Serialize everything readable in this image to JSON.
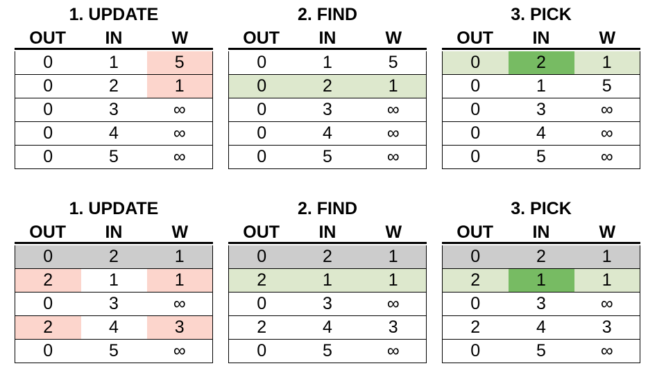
{
  "colors": {
    "red": "#fcd5cc",
    "lg": "#dde8cd",
    "dg": "#77bb63",
    "gray": "#cccccc"
  },
  "headers": [
    "OUT",
    "IN",
    "W"
  ],
  "panels": [
    {
      "title": "1. UPDATE",
      "rows": [
        [
          "0",
          "1",
          "5"
        ],
        [
          "0",
          "2",
          "1"
        ],
        [
          "0",
          "3",
          "∞"
        ],
        [
          "0",
          "4",
          "∞"
        ],
        [
          "0",
          "5",
          "∞"
        ]
      ],
      "hl": [
        [
          "",
          "",
          "red"
        ],
        [
          "",
          "",
          "red"
        ],
        [
          "",
          "",
          ""
        ],
        [
          "",
          "",
          ""
        ],
        [
          "",
          "",
          ""
        ]
      ]
    },
    {
      "title": "2. FIND",
      "rows": [
        [
          "0",
          "1",
          "5"
        ],
        [
          "0",
          "2",
          "1"
        ],
        [
          "0",
          "3",
          "∞"
        ],
        [
          "0",
          "4",
          "∞"
        ],
        [
          "0",
          "5",
          "∞"
        ]
      ],
      "hl": [
        [
          "",
          "",
          ""
        ],
        [
          "lg",
          "lg",
          "lg"
        ],
        [
          "",
          "",
          ""
        ],
        [
          "",
          "",
          ""
        ],
        [
          "",
          "",
          ""
        ]
      ]
    },
    {
      "title": "3. PICK",
      "rows": [
        [
          "0",
          "2",
          "1"
        ],
        [
          "0",
          "1",
          "5"
        ],
        [
          "0",
          "3",
          "∞"
        ],
        [
          "0",
          "4",
          "∞"
        ],
        [
          "0",
          "5",
          "∞"
        ]
      ],
      "hl": [
        [
          "lg",
          "dg",
          "lg"
        ],
        [
          "",
          "",
          ""
        ],
        [
          "",
          "",
          ""
        ],
        [
          "",
          "",
          ""
        ],
        [
          "",
          "",
          ""
        ]
      ]
    },
    {
      "title": "1. UPDATE",
      "rows": [
        [
          "0",
          "2",
          "1"
        ],
        [
          "2",
          "1",
          "1"
        ],
        [
          "0",
          "3",
          "∞"
        ],
        [
          "2",
          "4",
          "3"
        ],
        [
          "0",
          "5",
          "∞"
        ]
      ],
      "hl": [
        [
          "gray",
          "gray",
          "gray"
        ],
        [
          "red",
          "",
          "red"
        ],
        [
          "",
          "",
          ""
        ],
        [
          "red",
          "",
          "red"
        ],
        [
          "",
          "",
          ""
        ]
      ]
    },
    {
      "title": "2. FIND",
      "rows": [
        [
          "0",
          "2",
          "1"
        ],
        [
          "2",
          "1",
          "1"
        ],
        [
          "0",
          "3",
          "∞"
        ],
        [
          "2",
          "4",
          "3"
        ],
        [
          "0",
          "5",
          "∞"
        ]
      ],
      "hl": [
        [
          "gray",
          "gray",
          "gray"
        ],
        [
          "lg",
          "lg",
          "lg"
        ],
        [
          "",
          "",
          ""
        ],
        [
          "",
          "",
          ""
        ],
        [
          "",
          "",
          ""
        ]
      ]
    },
    {
      "title": "3. PICK",
      "rows": [
        [
          "0",
          "2",
          "1"
        ],
        [
          "2",
          "1",
          "1"
        ],
        [
          "0",
          "3",
          "∞"
        ],
        [
          "2",
          "4",
          "3"
        ],
        [
          "0",
          "5",
          "∞"
        ]
      ],
      "hl": [
        [
          "gray",
          "gray",
          "gray"
        ],
        [
          "lg",
          "dg",
          "lg"
        ],
        [
          "",
          "",
          ""
        ],
        [
          "",
          "",
          ""
        ],
        [
          "",
          "",
          ""
        ]
      ]
    }
  ]
}
